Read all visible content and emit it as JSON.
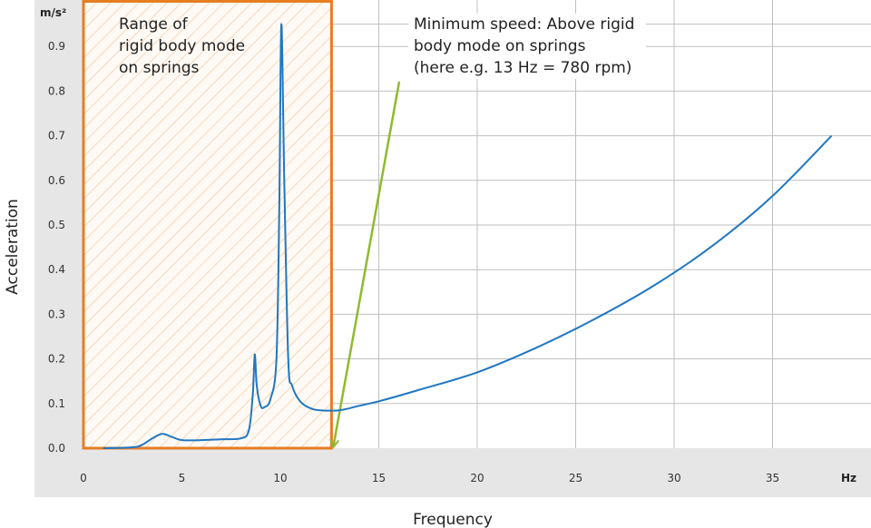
{
  "chart_data": {
    "type": "line",
    "xlabel": "Frequency",
    "ylabel": "Acceleration",
    "x_unit": "Hz",
    "y_unit": "m/s²",
    "xlim": [
      0,
      40
    ],
    "ylim": [
      0,
      1.0
    ],
    "x_ticks": [
      "0",
      "5",
      "10",
      "15",
      "20",
      "25",
      "30",
      "35"
    ],
    "y_ticks": [
      "0.0",
      "0.1",
      "0.2",
      "0.3",
      "0.4",
      "0.5",
      "0.6",
      "0.7",
      "0.8",
      "0.9"
    ],
    "grid": true,
    "series": [
      {
        "color": "#1f77c2",
        "x": [
          1.0,
          2.5,
          3.0,
          3.5,
          4.0,
          4.5,
          5.0,
          6.0,
          7.0,
          8.0,
          8.4,
          8.6,
          8.7,
          8.8,
          9.0,
          9.2,
          9.5,
          9.8,
          9.95,
          10.05,
          10.2,
          10.4,
          10.6,
          11.0,
          11.5,
          12.0,
          13.0,
          14.0,
          15.0,
          17.0,
          20.0,
          23.0,
          26.0,
          29.0,
          32.0,
          35.0,
          38.0
        ],
        "y": [
          0.0,
          0.002,
          0.008,
          0.022,
          0.032,
          0.025,
          0.018,
          0.018,
          0.02,
          0.022,
          0.04,
          0.12,
          0.21,
          0.14,
          0.095,
          0.092,
          0.11,
          0.2,
          0.55,
          0.95,
          0.6,
          0.2,
          0.14,
          0.105,
          0.09,
          0.085,
          0.085,
          0.095,
          0.105,
          0.13,
          0.17,
          0.225,
          0.29,
          0.365,
          0.455,
          0.565,
          0.7
        ]
      }
    ],
    "annotations": {
      "region": {
        "label_lines": [
          "Range of",
          "rigid body mode",
          "on springs"
        ],
        "x_range": [
          0,
          12.6
        ],
        "fill": "hatched",
        "border_color": "#e67e22"
      },
      "arrow_note": {
        "label_lines": [
          "Minimum speed: Above rigid",
          "body mode on springs",
          "(here e.g. 13 Hz = 780 rpm)"
        ],
        "points_to": [
          12.6,
          0.0
        ],
        "color": "#8fba2e"
      }
    }
  }
}
